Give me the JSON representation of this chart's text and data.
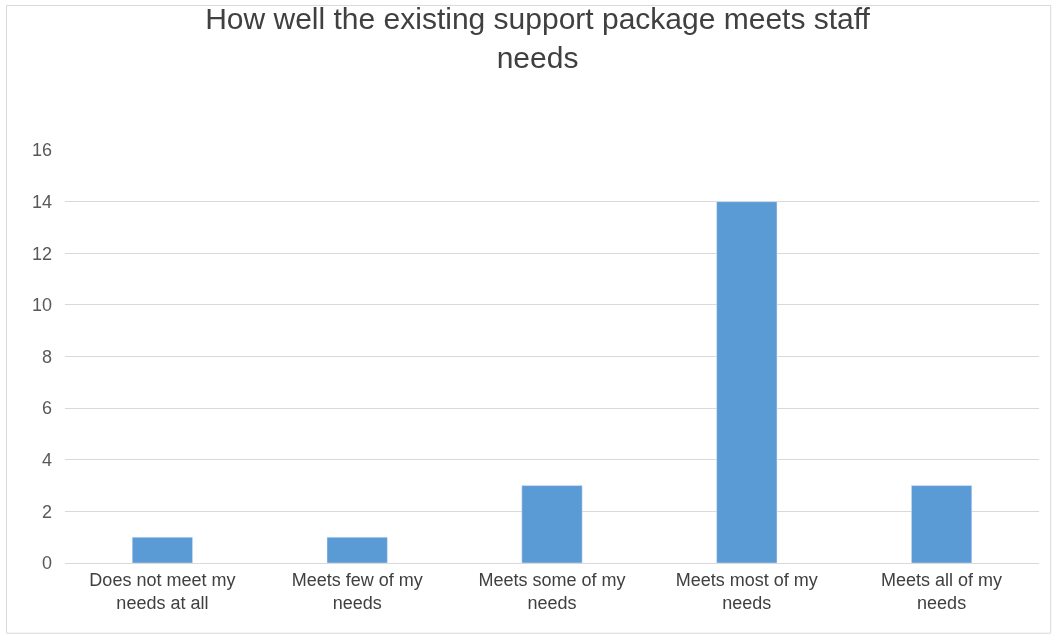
{
  "chart_data": {
    "type": "bar",
    "title": "How well the existing support package meets staff needs",
    "categories": [
      "Does not meet my needs at all",
      "Meets few of my needs",
      "Meets some of my needs",
      "Meets most of my needs",
      "Meets all of my needs"
    ],
    "values": [
      1,
      1,
      3,
      14,
      3
    ],
    "color": "#5b9bd5",
    "ylim": [
      0,
      16
    ],
    "yticks": [
      0,
      2,
      4,
      6,
      8,
      10,
      12,
      14,
      16
    ],
    "grid": "y",
    "legend": false
  }
}
